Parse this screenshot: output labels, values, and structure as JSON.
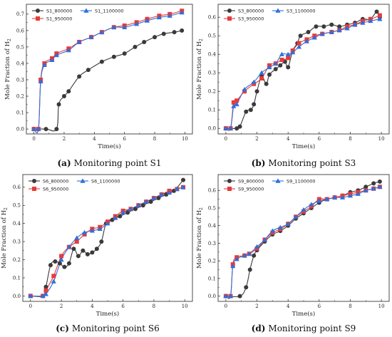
{
  "chart_data": [
    {
      "type": "line",
      "caption": {
        "label": "(a)",
        "text": "Monitoring point S1"
      },
      "xlabel": "Time(s)",
      "ylabel": "Mole Fraction of H",
      "ylabel_sub": "2",
      "xlim": [
        -0.5,
        10.5
      ],
      "ylim": [
        -0.03,
        0.76
      ],
      "xticks": [
        "0",
        "2",
        "4",
        "6",
        "8",
        "10"
      ],
      "yticks": [
        "0.0",
        "0.1",
        "0.2",
        "0.3",
        "0.4",
        "0.5",
        "0.6",
        "0.7"
      ],
      "legend_layout": "top-left-2col",
      "series": [
        {
          "name": "S1_800000",
          "color": "#3a3a3a",
          "marker": "circle",
          "x": [
            0,
            0.8,
            1.5,
            1.65,
            2.0,
            2.3,
            3.0,
            3.6,
            4.5,
            5.3,
            6.0,
            6.7,
            7.3,
            8.0,
            8.6,
            9.3,
            9.8
          ],
          "y": [
            0.0,
            0.0,
            0.0,
            0.15,
            0.2,
            0.23,
            0.32,
            0.36,
            0.41,
            0.44,
            0.46,
            0.5,
            0.53,
            0.56,
            0.58,
            0.59,
            0.6
          ]
        },
        {
          "name": "S1_950000",
          "color": "#e63b3b",
          "marker": "square",
          "x": [
            0,
            0.3,
            0.45,
            0.7,
            1.2,
            1.5,
            2.3,
            3.0,
            3.8,
            4.5,
            5.3,
            6.0,
            6.8,
            7.5,
            8.3,
            9.0,
            9.8
          ],
          "y": [
            0.0,
            0.0,
            0.3,
            0.4,
            0.43,
            0.46,
            0.49,
            0.53,
            0.56,
            0.59,
            0.62,
            0.63,
            0.65,
            0.67,
            0.69,
            0.7,
            0.72
          ]
        },
        {
          "name": "S1_1100000",
          "color": "#2f6fd8",
          "marker": "triangle",
          "x": [
            0,
            0.3,
            0.45,
            0.7,
            1.2,
            1.5,
            2.3,
            3.0,
            3.8,
            4.5,
            5.3,
            6.0,
            6.8,
            7.5,
            8.3,
            9.0,
            9.8
          ],
          "y": [
            0.0,
            0.0,
            0.29,
            0.39,
            0.42,
            0.45,
            0.48,
            0.53,
            0.56,
            0.59,
            0.62,
            0.62,
            0.64,
            0.66,
            0.68,
            0.69,
            0.71
          ]
        }
      ]
    },
    {
      "type": "line",
      "caption": {
        "label": "(b)",
        "text": "Monitoring point S3"
      },
      "xlabel": "Time(s)",
      "ylabel": "Mole Fraction of H",
      "ylabel_sub": "2",
      "xlim": [
        -0.5,
        10.5
      ],
      "ylim": [
        -0.03,
        0.67
      ],
      "xticks": [
        "0",
        "2",
        "4",
        "6",
        "8",
        "10"
      ],
      "yticks": [
        "0.0",
        "0.1",
        "0.2",
        "0.3",
        "0.4",
        "0.5",
        "0.6"
      ],
      "legend_layout": "top-left-2col",
      "series": [
        {
          "name": "S3_800000",
          "color": "#3a3a3a",
          "marker": "circle",
          "x": [
            0,
            0.7,
            0.9,
            1.3,
            1.6,
            1.8,
            2.0,
            2.3,
            2.6,
            2.8,
            3.2,
            3.5,
            3.8,
            4.0,
            4.3,
            4.6,
            4.8,
            5.3,
            5.8,
            6.3,
            6.8,
            7.3,
            7.8,
            8.3,
            8.8,
            9.3,
            9.7,
            9.9
          ],
          "y": [
            0.0,
            0.0,
            0.01,
            0.09,
            0.1,
            0.13,
            0.2,
            0.28,
            0.24,
            0.29,
            0.32,
            0.34,
            0.36,
            0.33,
            0.42,
            0.46,
            0.5,
            0.52,
            0.55,
            0.55,
            0.56,
            0.55,
            0.56,
            0.57,
            0.59,
            0.59,
            0.63,
            0.6
          ]
        },
        {
          "name": "S3_950000",
          "color": "#e63b3b",
          "marker": "square",
          "x": [
            0,
            0.3,
            0.5,
            0.7,
            1.2,
            1.8,
            2.3,
            2.8,
            3.2,
            3.6,
            4.0,
            4.3,
            4.7,
            5.2,
            5.7,
            6.2,
            6.8,
            7.3,
            7.8,
            8.3,
            8.8,
            9.3,
            9.9
          ],
          "y": [
            0.0,
            0.0,
            0.14,
            0.15,
            0.2,
            0.24,
            0.27,
            0.34,
            0.35,
            0.37,
            0.38,
            0.42,
            0.46,
            0.48,
            0.5,
            0.51,
            0.52,
            0.53,
            0.55,
            0.56,
            0.58,
            0.59,
            0.61
          ]
        },
        {
          "name": "S3_1100000",
          "color": "#2f6fd8",
          "marker": "triangle",
          "x": [
            0,
            0.3,
            0.5,
            0.7,
            1.2,
            1.8,
            2.3,
            2.8,
            3.2,
            3.6,
            4.0,
            4.3,
            4.7,
            5.2,
            5.7,
            6.2,
            6.8,
            7.3,
            7.8,
            8.3,
            8.8,
            9.3,
            9.9
          ],
          "y": [
            0.0,
            0.0,
            0.12,
            0.13,
            0.21,
            0.25,
            0.3,
            0.33,
            0.35,
            0.4,
            0.4,
            0.41,
            0.44,
            0.47,
            0.49,
            0.51,
            0.52,
            0.53,
            0.54,
            0.56,
            0.57,
            0.58,
            0.59
          ]
        }
      ]
    },
    {
      "type": "line",
      "caption": {
        "label": "(c)",
        "text": "Monitoring point S6"
      },
      "xlabel": "Time(s)",
      "ylabel": "Mole Fraction of H",
      "ylabel_sub": "2",
      "xlim": [
        -0.5,
        10.5
      ],
      "ylim": [
        -0.03,
        0.67
      ],
      "xticks": [
        "0",
        "2",
        "4",
        "6",
        "8",
        "10"
      ],
      "yticks": [
        "0.0",
        "0.1",
        "0.2",
        "0.3",
        "0.4",
        "0.5",
        "0.6"
      ],
      "legend_layout": "top-left-2col",
      "series": [
        {
          "name": "S6_800000",
          "color": "#3a3a3a",
          "marker": "circle",
          "x": [
            0,
            0.8,
            1.0,
            1.3,
            1.6,
            1.9,
            2.2,
            2.5,
            2.8,
            3.1,
            3.4,
            3.7,
            4.0,
            4.3,
            4.6,
            4.9,
            5.3,
            5.8,
            6.3,
            6.8,
            7.3,
            7.8,
            8.3,
            8.8,
            9.3,
            9.9
          ],
          "y": [
            0.0,
            0.0,
            0.05,
            0.17,
            0.19,
            0.18,
            0.16,
            0.18,
            0.26,
            0.22,
            0.25,
            0.23,
            0.24,
            0.26,
            0.3,
            0.4,
            0.42,
            0.44,
            0.46,
            0.48,
            0.5,
            0.52,
            0.54,
            0.56,
            0.58,
            0.64
          ]
        },
        {
          "name": "S6_950000",
          "color": "#e63b3b",
          "marker": "square",
          "x": [
            0,
            0.8,
            1.0,
            1.5,
            2.0,
            2.5,
            3.0,
            3.5,
            4.0,
            4.5,
            5.0,
            5.5,
            6.0,
            6.5,
            7.0,
            7.5,
            8.0,
            8.5,
            9.0,
            9.5,
            9.9
          ],
          "y": [
            0.0,
            0.0,
            0.03,
            0.11,
            0.22,
            0.27,
            0.3,
            0.34,
            0.37,
            0.38,
            0.41,
            0.44,
            0.47,
            0.48,
            0.5,
            0.52,
            0.54,
            0.56,
            0.58,
            0.59,
            0.6
          ]
        },
        {
          "name": "S6_1100000",
          "color": "#2f6fd8",
          "marker": "triangle",
          "x": [
            0,
            0.8,
            1.0,
            1.5,
            2.0,
            2.5,
            3.0,
            3.5,
            4.0,
            4.5,
            5.0,
            5.5,
            6.0,
            6.5,
            7.0,
            7.5,
            8.0,
            8.5,
            9.0,
            9.5,
            9.9
          ],
          "y": [
            0.0,
            0.0,
            0.01,
            0.08,
            0.2,
            0.27,
            0.32,
            0.35,
            0.36,
            0.37,
            0.4,
            0.43,
            0.46,
            0.48,
            0.5,
            0.52,
            0.54,
            0.56,
            0.57,
            0.59,
            0.6
          ]
        }
      ]
    },
    {
      "type": "line",
      "caption": {
        "label": "(d)",
        "text": "Monitoring point S9"
      },
      "xlabel": "Time(s)",
      "ylabel": "Mole Fraction of H",
      "ylabel_sub": "2",
      "xlim": [
        -0.5,
        10.5
      ],
      "ylim": [
        -0.03,
        0.69
      ],
      "xticks": [
        "0",
        "2",
        "4",
        "6",
        "8",
        "10"
      ],
      "yticks": [
        "0.0",
        "0.1",
        "0.2",
        "0.3",
        "0.4",
        "0.5",
        "0.6"
      ],
      "legend_layout": "top-left-2col",
      "series": [
        {
          "name": "S9_800000",
          "color": "#3a3a3a",
          "marker": "circle",
          "x": [
            0,
            0.9,
            1.3,
            1.55,
            1.8,
            2.0,
            2.5,
            3.0,
            3.5,
            4.0,
            4.5,
            5.0,
            5.5,
            6.0,
            6.5,
            7.0,
            7.5,
            8.0,
            8.5,
            9.0,
            9.5,
            9.9
          ],
          "y": [
            0.0,
            0.0,
            0.05,
            0.15,
            0.23,
            0.26,
            0.31,
            0.35,
            0.37,
            0.4,
            0.44,
            0.47,
            0.5,
            0.53,
            0.55,
            0.56,
            0.57,
            0.59,
            0.6,
            0.62,
            0.64,
            0.65
          ]
        },
        {
          "name": "S9_950000",
          "color": "#e63b3b",
          "marker": "square",
          "x": [
            0,
            0.3,
            0.45,
            0.7,
            1.2,
            1.5,
            2.0,
            2.5,
            3.0,
            3.5,
            4.0,
            4.5,
            5.0,
            5.5,
            6.0,
            6.5,
            7.0,
            7.5,
            8.0,
            8.5,
            9.0,
            9.5,
            9.9
          ],
          "y": [
            0.0,
            0.0,
            0.18,
            0.22,
            0.23,
            0.24,
            0.27,
            0.32,
            0.36,
            0.38,
            0.41,
            0.45,
            0.48,
            0.51,
            0.55,
            0.55,
            0.56,
            0.57,
            0.58,
            0.59,
            0.6,
            0.61,
            0.62
          ]
        },
        {
          "name": "S9_1100000",
          "color": "#2f6fd8",
          "marker": "triangle",
          "x": [
            0,
            0.3,
            0.45,
            0.7,
            1.2,
            1.5,
            2.0,
            2.5,
            3.0,
            3.5,
            4.0,
            4.5,
            5.0,
            5.5,
            6.0,
            6.5,
            7.0,
            7.5,
            8.0,
            8.5,
            9.0,
            9.5,
            9.9
          ],
          "y": [
            0.0,
            0.0,
            0.17,
            0.21,
            0.23,
            0.24,
            0.28,
            0.32,
            0.37,
            0.39,
            0.41,
            0.45,
            0.49,
            0.52,
            0.54,
            0.55,
            0.56,
            0.56,
            0.57,
            0.58,
            0.6,
            0.61,
            0.62
          ]
        }
      ]
    }
  ]
}
